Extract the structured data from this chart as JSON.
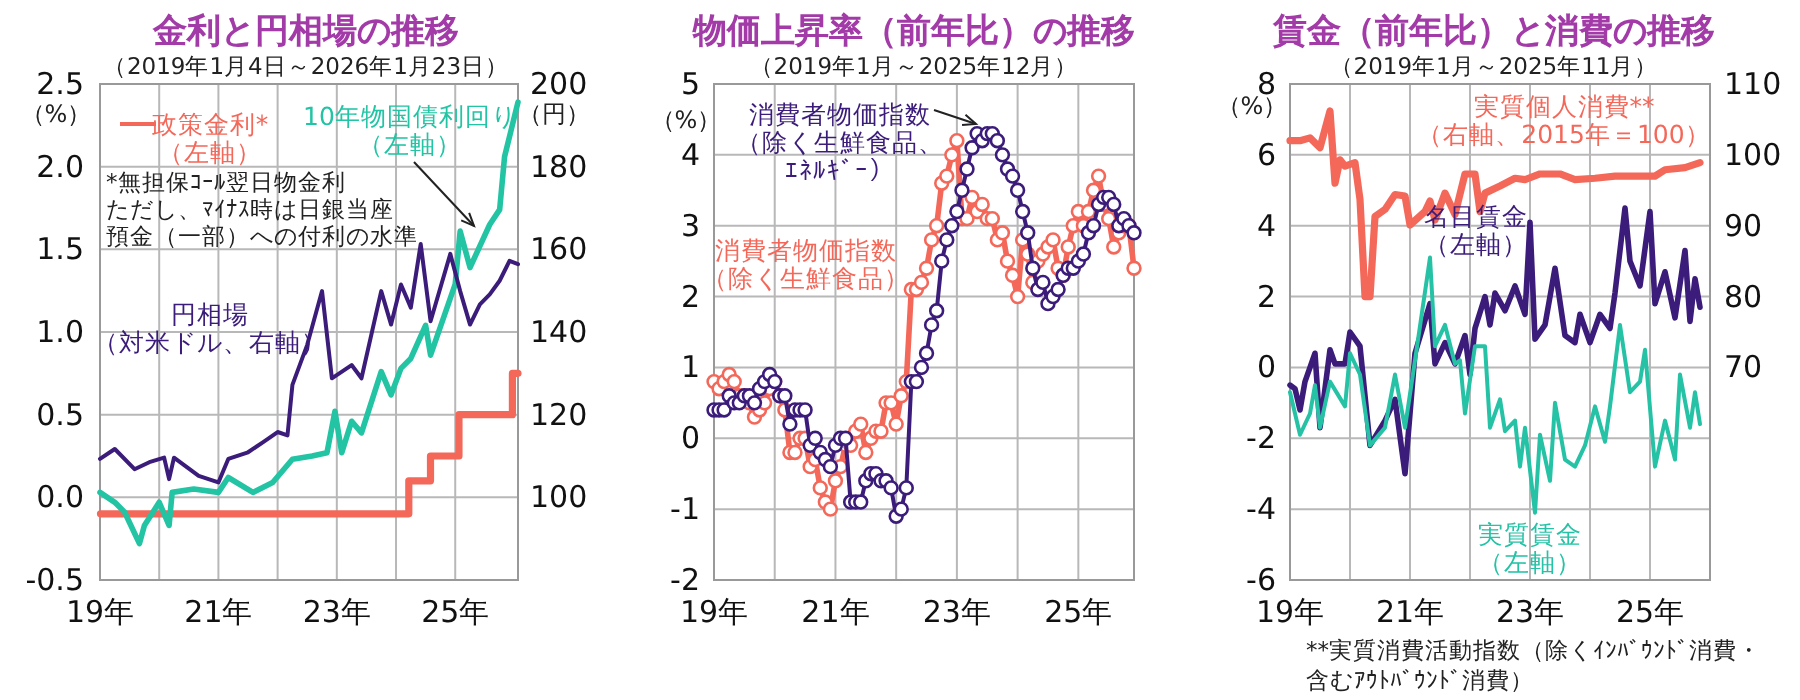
{
  "chart_data": [
    {
      "type": "line",
      "title": "金利と円相場の推移",
      "subtitle": "（2019年1月4日～2026年1月23日）",
      "ylabel": "（%）",
      "y2label": "（円）",
      "grid": true,
      "xlim": [
        "2019-01",
        "2026-01-23"
      ],
      "xticks": [
        {
          "value": "2019",
          "label": "19年"
        },
        {
          "value": "2020",
          "label": null
        },
        {
          "value": "2021",
          "label": "21年"
        },
        {
          "value": "2022",
          "label": null
        },
        {
          "value": "2023",
          "label": "23年"
        },
        {
          "value": "2024",
          "label": null
        },
        {
          "value": "2025",
          "label": "25年"
        }
      ],
      "ylim": [
        -0.5,
        2.5
      ],
      "yticks": [
        -0.5,
        {
          "value": 0,
          "label": "0.0"
        },
        0.5,
        {
          "value": 1,
          "label": "1.0"
        },
        1.5,
        {
          "value": 2,
          "label": "2.0"
        },
        2.5
      ],
      "y2lim": [
        80,
        200
      ],
      "y2ticks": [
        100,
        120,
        140,
        160,
        180,
        200
      ],
      "annotations": [
        "*無担保ｺｰﾙ翌日物金利ただし、ﾏｲﾅｽ時は日銀当座預金（一部）への付利の水準"
      ],
      "series": [
        {
          "name": "政策金利*（左軸）",
          "type": "step",
          "color": "#f4685a",
          "x": [
            "2019-01-04",
            "2024-03-19",
            "2024-07-31",
            "2025-01-24",
            "2025-12-19",
            "2026-01-23"
          ],
          "values": [
            -0.1,
            0.1,
            0.25,
            0.5,
            0.75,
            0.75
          ]
        },
        {
          "name": "10年物国債利回り（左軸）",
          "color": "#22c4a4",
          "x": [
            "2019-01",
            "2019-04",
            "2019-06",
            "2019-09",
            "2019-10",
            "2020-01",
            "2020-03-01",
            "2020-03-20",
            "2020-08",
            "2021-01",
            "2021-03",
            "2021-08",
            "2021-12",
            "2022-04",
            "2022-08",
            "2022-11",
            "2022-12-20",
            "2023-02",
            "2023-04",
            "2023-06",
            "2023-10",
            "2023-12",
            "2024-02",
            "2024-04",
            "2024-07",
            "2024-08",
            "2025-01",
            "2025-02",
            "2025-04",
            "2025-08",
            "2025-10",
            "2025-11",
            "2026-01-23"
          ],
          "values": [
            0.03,
            -0.03,
            -0.09,
            -0.28,
            -0.17,
            -0.03,
            -0.17,
            0.03,
            0.05,
            0.03,
            0.12,
            0.03,
            0.09,
            0.23,
            0.25,
            0.27,
            0.52,
            0.27,
            0.46,
            0.39,
            0.76,
            0.62,
            0.78,
            0.84,
            1.04,
            0.86,
            1.29,
            1.61,
            1.39,
            1.65,
            1.74,
            2.06,
            2.39
          ]
        },
        {
          "name": "円相場（対米ドル、右軸）",
          "axis": "y2",
          "color": "#3b1c7a",
          "x": [
            "2019-01",
            "2019-04",
            "2019-08",
            "2019-11",
            "2020-02",
            "2020-03",
            "2020-04",
            "2020-09",
            "2021-01",
            "2021-03",
            "2021-07",
            "2021-10",
            "2022-01",
            "2022-03",
            "2022-04",
            "2022-07",
            "2022-10",
            "2022-12",
            "2023-04",
            "2023-06",
            "2023-10",
            "2023-12",
            "2024-02",
            "2024-04",
            "2024-06",
            "2024-08",
            "2024-12",
            "2025-02",
            "2025-04",
            "2025-06",
            "2025-08",
            "2025-10",
            "2025-12",
            "2026-01-23"
          ],
          "values": [
            109.3,
            111.7,
            106.8,
            108.5,
            109.6,
            104.4,
            109.6,
            105.2,
            103.6,
            109.3,
            110.9,
            113.3,
            115.8,
            115.0,
            127.2,
            136.9,
            149.9,
            128.8,
            132.0,
            128.8,
            149.9,
            141.8,
            151.5,
            145.9,
            161.3,
            142.6,
            158.9,
            149.9,
            141.8,
            146.7,
            149.1,
            152.4,
            157.2,
            156.4
          ]
        }
      ]
    },
    {
      "type": "line",
      "title": "物価上昇率（前年比）の推移",
      "subtitle": "（2019年1月～2025年12月）",
      "ylabel": "（%）",
      "grid": true,
      "marker": "circle",
      "xlim": [
        "2019-01",
        "2025-12"
      ],
      "xticks": [
        {
          "value": "2019",
          "label": "19年"
        },
        {
          "value": "2020",
          "label": null
        },
        {
          "value": "2021",
          "label": "21年"
        },
        {
          "value": "2022",
          "label": null
        },
        {
          "value": "2023",
          "label": "23年"
        },
        {
          "value": "2024",
          "label": null
        },
        {
          "value": "2025",
          "label": "25年"
        }
      ],
      "ylim": [
        -2,
        5
      ],
      "yticks": [
        -2,
        -1,
        0,
        1,
        2,
        3,
        4,
        5
      ],
      "x": [
        "2019-01",
        "2019-02",
        "2019-03",
        "2019-04",
        "2019-05",
        "2019-06",
        "2019-07",
        "2019-08",
        "2019-09",
        "2019-10",
        "2019-11",
        "2019-12",
        "2020-01",
        "2020-02",
        "2020-03",
        "2020-04",
        "2020-05",
        "2020-06",
        "2020-07",
        "2020-08",
        "2020-09",
        "2020-10",
        "2020-11",
        "2020-12",
        "2021-01",
        "2021-02",
        "2021-03",
        "2021-04",
        "2021-05",
        "2021-06",
        "2021-07",
        "2021-08",
        "2021-09",
        "2021-10",
        "2021-11",
        "2021-12",
        "2022-01",
        "2022-02",
        "2022-03",
        "2022-04",
        "2022-05",
        "2022-06",
        "2022-07",
        "2022-08",
        "2022-09",
        "2022-10",
        "2022-11",
        "2022-12",
        "2023-01",
        "2023-02",
        "2023-03",
        "2023-04",
        "2023-05",
        "2023-06",
        "2023-07",
        "2023-08",
        "2023-09",
        "2023-10",
        "2023-11",
        "2023-12",
        "2024-01",
        "2024-02",
        "2024-03",
        "2024-04",
        "2024-05",
        "2024-06",
        "2024-07",
        "2024-08",
        "2024-09",
        "2024-10",
        "2024-11",
        "2024-12",
        "2025-01",
        "2025-02",
        "2025-03",
        "2025-04",
        "2025-05",
        "2025-06",
        "2025-07",
        "2025-08",
        "2025-09",
        "2025-10",
        "2025-11",
        "2025-12"
      ],
      "series": [
        {
          "name": "消費者物価指数（除く生鮮食品）",
          "color": "#f4685a",
          "values": [
            0.8,
            0.7,
            0.8,
            0.9,
            0.8,
            0.6,
            0.6,
            0.5,
            0.3,
            0.4,
            0.5,
            0.7,
            0.8,
            0.6,
            0.4,
            -0.2,
            -0.2,
            0.0,
            0.0,
            -0.4,
            -0.3,
            -0.7,
            -0.9,
            -1.0,
            -0.6,
            -0.4,
            -0.1,
            -0.1,
            0.1,
            0.2,
            -0.2,
            0.0,
            0.1,
            0.1,
            0.5,
            0.5,
            0.2,
            0.6,
            0.8,
            2.1,
            2.1,
            2.2,
            2.4,
            2.8,
            3.0,
            3.6,
            3.7,
            4.0,
            4.2,
            3.1,
            3.1,
            3.4,
            3.2,
            3.3,
            3.1,
            3.1,
            2.8,
            2.9,
            2.5,
            2.3,
            2.0,
            2.8,
            2.6,
            2.2,
            2.5,
            2.6,
            2.7,
            2.8,
            2.4,
            2.3,
            2.7,
            3.0,
            3.2,
            3.0,
            3.2,
            3.5,
            3.7,
            3.3,
            3.1,
            2.7,
            2.9,
            3.0,
            3.0,
            2.4
          ]
        },
        {
          "name": "消費者物価指数（除く生鮮食品、ｴﾈﾙｷﾞｰ）",
          "color": "#3b1c7a",
          "values": [
            0.4,
            0.4,
            0.4,
            0.6,
            0.5,
            0.5,
            0.6,
            0.6,
            0.5,
            0.7,
            0.8,
            0.9,
            0.8,
            0.6,
            0.6,
            0.2,
            0.4,
            0.4,
            0.4,
            -0.1,
            0.0,
            -0.2,
            -0.3,
            -0.4,
            -0.1,
            0.0,
            0.0,
            -0.9,
            -0.9,
            -0.9,
            -0.6,
            -0.5,
            -0.5,
            -0.6,
            -0.6,
            -0.7,
            -1.1,
            -1.0,
            -0.7,
            0.8,
            0.8,
            1.0,
            1.2,
            1.6,
            1.8,
            2.5,
            2.8,
            3.0,
            3.2,
            3.5,
            3.8,
            4.1,
            4.3,
            4.2,
            4.3,
            4.3,
            4.2,
            4.0,
            3.8,
            3.7,
            3.5,
            3.2,
            2.9,
            2.4,
            2.1,
            2.2,
            1.9,
            2.0,
            2.1,
            2.3,
            2.4,
            2.4,
            2.5,
            2.6,
            2.9,
            3.0,
            3.3,
            3.4,
            3.4,
            3.3,
            3.0,
            3.1,
            3.0,
            2.9
          ]
        }
      ]
    },
    {
      "type": "line",
      "title": "賃金（前年比）と消費の推移",
      "subtitle": "（2019年1月～2025年11月）",
      "ylabel": "（%）",
      "grid": true,
      "xlim": [
        "2019-01",
        "2026-01"
      ],
      "xticks": [
        {
          "value": "2019",
          "label": "19年"
        },
        {
          "value": "2020",
          "label": null
        },
        {
          "value": "2021",
          "label": "21年"
        },
        {
          "value": "2022",
          "label": null
        },
        {
          "value": "2023",
          "label": "23年"
        },
        {
          "value": "2024",
          "label": null
        },
        {
          "value": "2025",
          "label": "25年"
        }
      ],
      "ylim": [
        -6,
        8
      ],
      "yticks": [
        -6,
        -4,
        -2,
        0,
        2,
        4,
        6,
        8
      ],
      "y2lim": [
        40,
        110
      ],
      "y2ticks": [
        70,
        80,
        90,
        100,
        110
      ],
      "annotations": [
        "**実質消費活動指数（除くｲﾝﾊﾞｳﾝﾄﾞ消費・含むｱｳﾄﾊﾞｳﾝﾄﾞ消費）"
      ],
      "series": [
        {
          "name": "実質個人消費**（右軸、2015年＝100）",
          "axis": "y2",
          "color": "#f4685a",
          "x": [
            "2019-01",
            "2019-03",
            "2019-05",
            "2019-07",
            "2019-09",
            "2019-10",
            "2019-11",
            "2019-12",
            "2020-02",
            "2020-03",
            "2020-04",
            "2020-05",
            "2020-06",
            "2020-08",
            "2020-10",
            "2020-12",
            "2021-01",
            "2021-04",
            "2021-05",
            "2021-06",
            "2021-08",
            "2021-10",
            "2021-12",
            "2022-02",
            "2022-03",
            "2022-04",
            "2022-07",
            "2022-10",
            "2022-12",
            "2023-03",
            "2023-07",
            "2023-10",
            "2024-02",
            "2024-06",
            "2024-10",
            "2025-02",
            "2025-04",
            "2025-08",
            "2025-11"
          ],
          "values": [
            102.0,
            102.0,
            102.4,
            101.0,
            106.2,
            96.0,
            99.3,
            98.4,
            98.9,
            93.7,
            80.0,
            80.0,
            91.3,
            92.3,
            94.4,
            94.2,
            90.1,
            92.0,
            93.5,
            90.8,
            94.6,
            91.6,
            97.3,
            97.3,
            92.0,
            94.6,
            95.6,
            96.7,
            96.5,
            97.3,
            97.3,
            96.5,
            96.7,
            97.0,
            97.0,
            97.0,
            97.9,
            98.2,
            98.9
          ]
        },
        {
          "name": "名目賃金（左軸）",
          "color": "#3b1c7a",
          "x": [
            "2019-01",
            "2019-02",
            "2019-03",
            "2019-04",
            "2019-06",
            "2019-07",
            "2019-09",
            "2019-10",
            "2019-12",
            "2020-01",
            "2020-03",
            "2020-05",
            "2020-08",
            "2020-10",
            "2020-12",
            "2021-02",
            "2021-05",
            "2021-06",
            "2021-08",
            "2021-10",
            "2021-12",
            "2022-01",
            "2022-02",
            "2022-04",
            "2022-05",
            "2022-06",
            "2022-08",
            "2022-10",
            "2022-12",
            "2023-01",
            "2023-02",
            "2023-04",
            "2023-06",
            "2023-08",
            "2023-10",
            "2023-11",
            "2024-01",
            "2024-03",
            "2024-05",
            "2024-06",
            "2024-08",
            "2024-09",
            "2024-11",
            "2025-01",
            "2025-02",
            "2025-04",
            "2025-06",
            "2025-08",
            "2025-09",
            "2025-10",
            "2025-11"
          ],
          "values": [
            -0.5,
            -0.6,
            -1.2,
            -0.4,
            0.4,
            -1.7,
            0.5,
            0.1,
            0.1,
            1.0,
            0.6,
            -2.2,
            -1.5,
            -0.9,
            -3.0,
            0.4,
            1.8,
            0.1,
            0.7,
            0.1,
            0.9,
            -0.2,
            1.1,
            2.0,
            1.2,
            2.1,
            1.6,
            2.3,
            1.5,
            4.1,
            0.8,
            1.2,
            2.8,
            0.9,
            0.7,
            1.5,
            0.7,
            1.5,
            1.1,
            2.1,
            4.5,
            3.0,
            2.3,
            4.4,
            1.8,
            2.7,
            1.4,
            3.3,
            1.3,
            2.5,
            1.7
          ]
        },
        {
          "name": "実質賃金（左軸）",
          "color": "#26c2a6",
          "x": [
            "2019-01",
            "2019-03",
            "2019-05",
            "2019-06",
            "2019-07",
            "2019-09",
            "2019-12",
            "2020-01",
            "2020-03",
            "2020-05",
            "2020-08",
            "2020-10",
            "2020-12",
            "2021-02",
            "2021-05",
            "2021-06",
            "2021-08",
            "2021-10",
            "2021-11",
            "2021-12",
            "2022-02",
            "2022-04",
            "2022-05",
            "2022-07",
            "2022-08",
            "2022-10",
            "2022-11",
            "2022-12",
            "2023-02",
            "2023-03",
            "2023-05",
            "2023-06",
            "2023-08",
            "2023-10",
            "2023-12",
            "2024-02",
            "2024-04",
            "2024-05",
            "2024-07",
            "2024-09",
            "2024-11",
            "2024-12",
            "2025-02",
            "2025-04",
            "2025-06",
            "2025-07",
            "2025-09",
            "2025-10",
            "2025-11"
          ],
          "values": [
            -0.7,
            -1.9,
            -1.3,
            -0.5,
            -1.7,
            -0.4,
            -1.1,
            0.4,
            -0.2,
            -2.2,
            -1.7,
            -0.2,
            -1.7,
            0.2,
            3.1,
            0.6,
            1.2,
            0.1,
            0.2,
            -1.3,
            0.6,
            0.6,
            -1.7,
            -0.9,
            -1.8,
            -1.5,
            -2.8,
            -1.7,
            -4.1,
            -1.9,
            -3.2,
            -1.0,
            -2.6,
            -2.8,
            -2.2,
            -1.1,
            -2.1,
            -1.1,
            1.2,
            -0.7,
            -0.4,
            0.5,
            -2.8,
            -1.5,
            -2.6,
            -0.2,
            -1.7,
            -0.7,
            -1.6
          ]
        }
      ]
    }
  ]
}
